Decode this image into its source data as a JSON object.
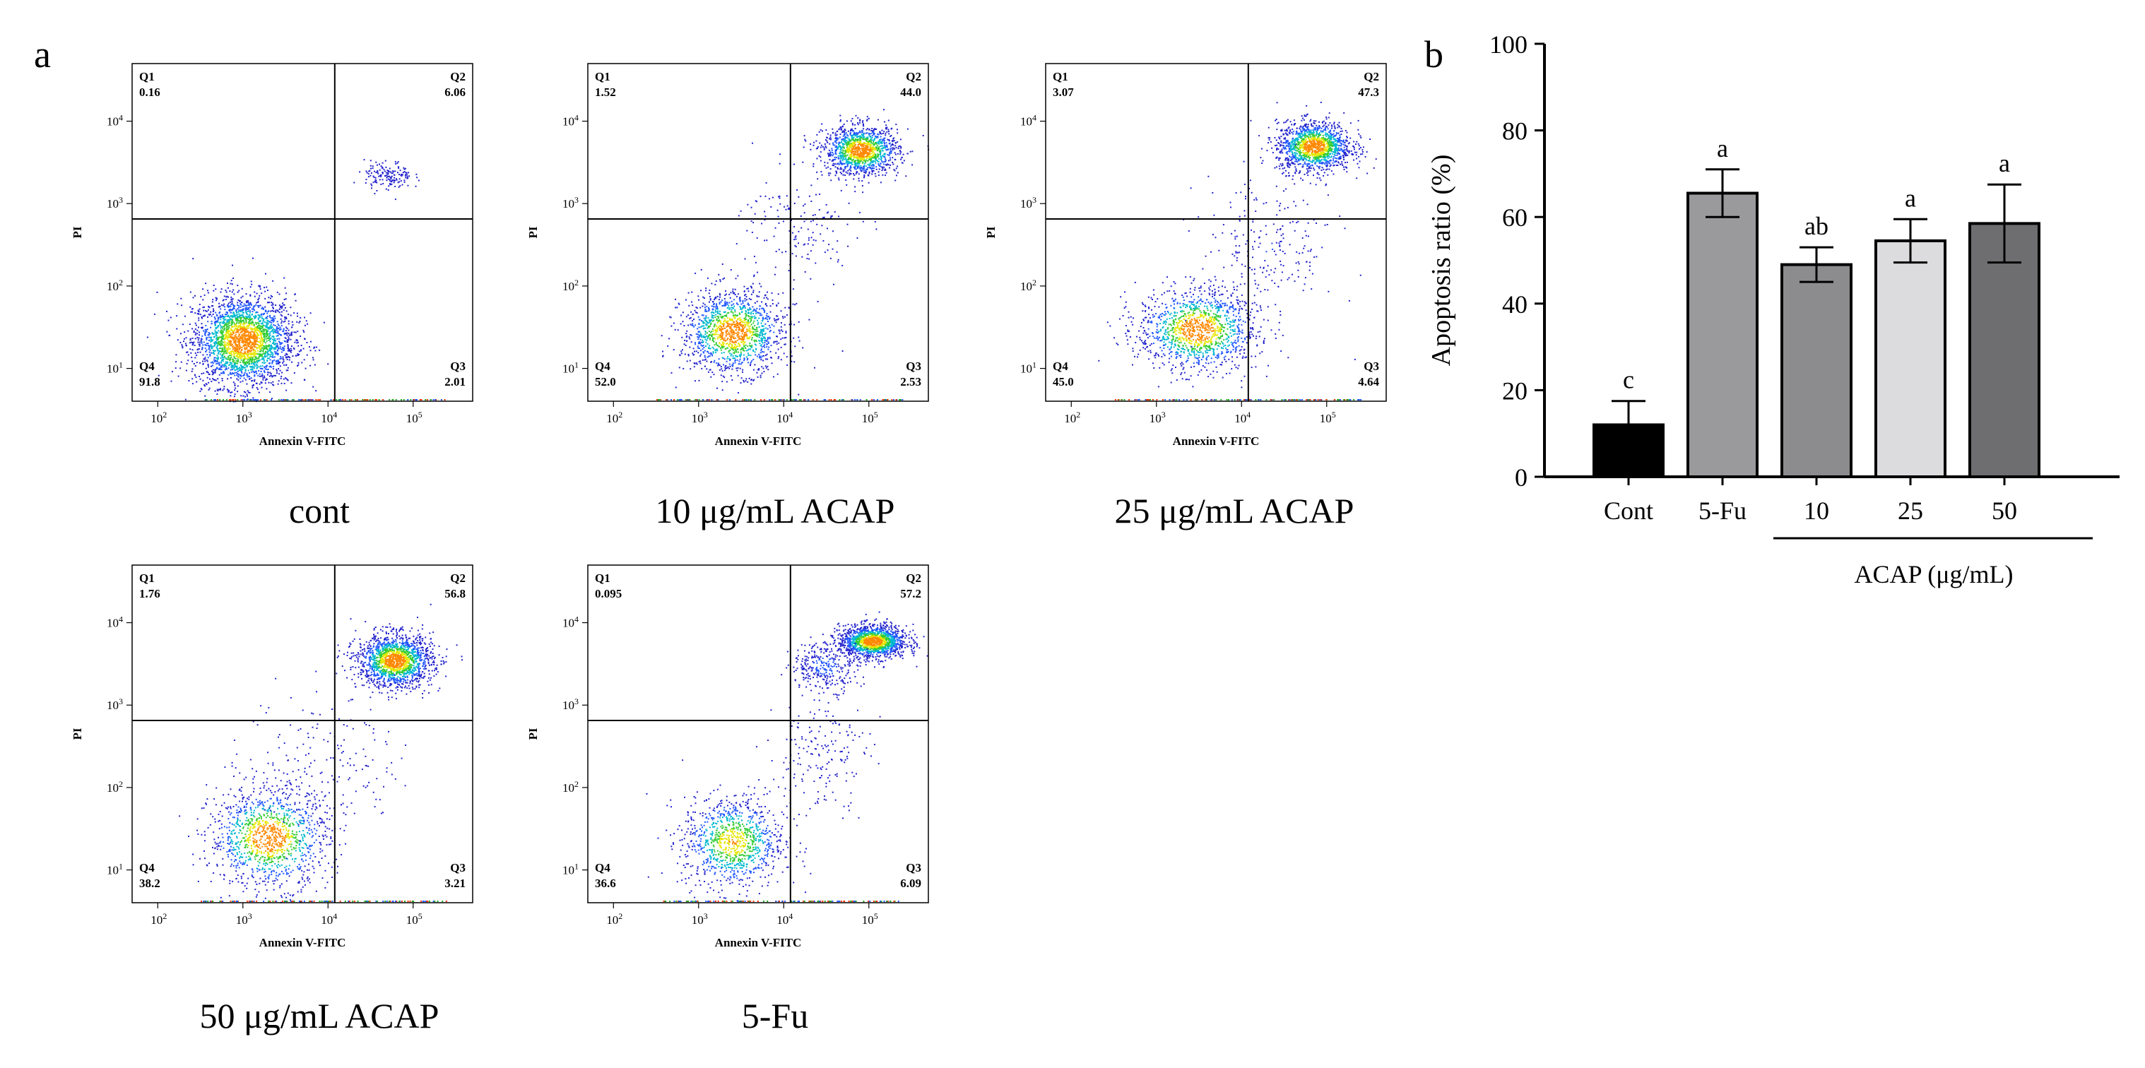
{
  "panel_a_label": "a",
  "panel_b_label": "b",
  "chart_data": [
    {
      "type": "scatter",
      "caption": "cont",
      "xlabel": "Annexin V-FITC",
      "ylabel": "PI",
      "x_scale": "log",
      "y_scale": "log",
      "x_ticks": [
        "10^2",
        "10^3",
        "10^4",
        "10^5"
      ],
      "y_ticks": [
        "10^1",
        "10^2",
        "10^3",
        "10^4"
      ],
      "quadrants": [
        {
          "name": "Q1",
          "value": "0.16"
        },
        {
          "name": "Q2",
          "value": "6.06"
        },
        {
          "name": "Q3",
          "value": "2.01"
        },
        {
          "name": "Q4",
          "value": "91.8"
        }
      ],
      "clusters": [
        {
          "x": 1000,
          "y": 22,
          "spread_x": 0.3,
          "spread_y": 0.28,
          "n": 2600
        },
        {
          "x": 50000,
          "y": 2200,
          "spread_x": 0.14,
          "spread_y": 0.09,
          "n": 160
        }
      ]
    },
    {
      "type": "scatter",
      "caption": "10 μg/mL ACAP",
      "xlabel": "Annexin V-FITC",
      "ylabel": "PI",
      "x_scale": "log",
      "y_scale": "log",
      "x_ticks": [
        "10^2",
        "10^3",
        "10^4",
        "10^5"
      ],
      "y_ticks": [
        "10^1",
        "10^2",
        "10^3",
        "10^4"
      ],
      "quadrants": [
        {
          "name": "Q1",
          "value": "1.52"
        },
        {
          "name": "Q2",
          "value": "44.0"
        },
        {
          "name": "Q3",
          "value": "2.53"
        },
        {
          "name": "Q4",
          "value": "52.0"
        }
      ],
      "clusters": [
        {
          "x": 2500,
          "y": 28,
          "spread_x": 0.3,
          "spread_y": 0.25,
          "n": 1400
        },
        {
          "x": 80000,
          "y": 4500,
          "spread_x": 0.22,
          "spread_y": 0.15,
          "n": 1300
        },
        {
          "x": 15000,
          "y": 500,
          "spread_x": 0.35,
          "spread_y": 0.35,
          "n": 160
        }
      ]
    },
    {
      "type": "scatter",
      "caption": "25 μg/mL ACAP",
      "xlabel": "Annexin V-FITC",
      "ylabel": "PI",
      "x_scale": "log",
      "y_scale": "log",
      "x_ticks": [
        "10^2",
        "10^3",
        "10^4",
        "10^5"
      ],
      "y_ticks": [
        "10^1",
        "10^2",
        "10^3",
        "10^4"
      ],
      "quadrants": [
        {
          "name": "Q1",
          "value": "3.07"
        },
        {
          "name": "Q2",
          "value": "47.3"
        },
        {
          "name": "Q3",
          "value": "4.64"
        },
        {
          "name": "Q4",
          "value": "45.0"
        }
      ],
      "clusters": [
        {
          "x": 3000,
          "y": 30,
          "spread_x": 0.35,
          "spread_y": 0.25,
          "n": 1300
        },
        {
          "x": 70000,
          "y": 5000,
          "spread_x": 0.22,
          "spread_y": 0.15,
          "n": 1400
        },
        {
          "x": 20000,
          "y": 300,
          "spread_x": 0.4,
          "spread_y": 0.45,
          "n": 220
        }
      ]
    },
    {
      "type": "scatter",
      "caption": "50 μg/mL ACAP",
      "xlabel": "Annexin V-FITC",
      "ylabel": "PI",
      "x_scale": "log",
      "y_scale": "log",
      "x_ticks": [
        "10^2",
        "10^3",
        "10^4",
        "10^5"
      ],
      "y_ticks": [
        "10^1",
        "10^2",
        "10^3",
        "10^4"
      ],
      "quadrants": [
        {
          "name": "Q1",
          "value": "1.76"
        },
        {
          "name": "Q2",
          "value": "56.8"
        },
        {
          "name": "Q3",
          "value": "3.21"
        },
        {
          "name": "Q4",
          "value": "38.2"
        }
      ],
      "clusters": [
        {
          "x": 2000,
          "y": 25,
          "spread_x": 0.35,
          "spread_y": 0.3,
          "n": 1200
        },
        {
          "x": 60000,
          "y": 3500,
          "spread_x": 0.22,
          "spread_y": 0.16,
          "n": 1600
        },
        {
          "x": 8000,
          "y": 200,
          "spread_x": 0.45,
          "spread_y": 0.45,
          "n": 200
        }
      ]
    },
    {
      "type": "scatter",
      "caption": "5-Fu",
      "xlabel": "Annexin V-FITC",
      "ylabel": "PI",
      "x_scale": "log",
      "y_scale": "log",
      "x_ticks": [
        "10^2",
        "10^3",
        "10^4",
        "10^5"
      ],
      "y_ticks": [
        "10^1",
        "10^2",
        "10^3",
        "10^4"
      ],
      "quadrants": [
        {
          "name": "Q1",
          "value": "0.095"
        },
        {
          "name": "Q2",
          "value": "57.2"
        },
        {
          "name": "Q3",
          "value": "6.09"
        },
        {
          "name": "Q4",
          "value": "36.6"
        }
      ],
      "clusters": [
        {
          "x": 2500,
          "y": 22,
          "spread_x": 0.3,
          "spread_y": 0.28,
          "n": 1000
        },
        {
          "x": 110000,
          "y": 6000,
          "spread_x": 0.2,
          "spread_y": 0.1,
          "n": 1400
        },
        {
          "x": 30000,
          "y": 3000,
          "spread_x": 0.2,
          "spread_y": 0.15,
          "n": 300
        },
        {
          "x": 25000,
          "y": 250,
          "spread_x": 0.3,
          "spread_y": 0.35,
          "n": 180
        }
      ]
    },
    {
      "type": "bar",
      "ylabel": "Apoptosis ratio (%)",
      "ylim": [
        0,
        100
      ],
      "y_ticks": [
        0,
        20,
        40,
        60,
        80,
        100
      ],
      "categories": [
        "Cont",
        "5-Fu",
        "10",
        "25",
        "50"
      ],
      "group_label": "ACAP (μg/mL)",
      "group_members": [
        "10",
        "25",
        "50"
      ],
      "values": [
        12,
        65.5,
        49,
        54.5,
        58.5
      ],
      "errors": [
        5.5,
        5.5,
        4,
        5,
        9
      ],
      "significance": [
        "c",
        "a",
        "ab",
        "a",
        "a"
      ],
      "colors": [
        "#000000",
        "#9a9a9c",
        "#8c8c8e",
        "#dcdcde",
        "#6e6e70"
      ]
    }
  ]
}
